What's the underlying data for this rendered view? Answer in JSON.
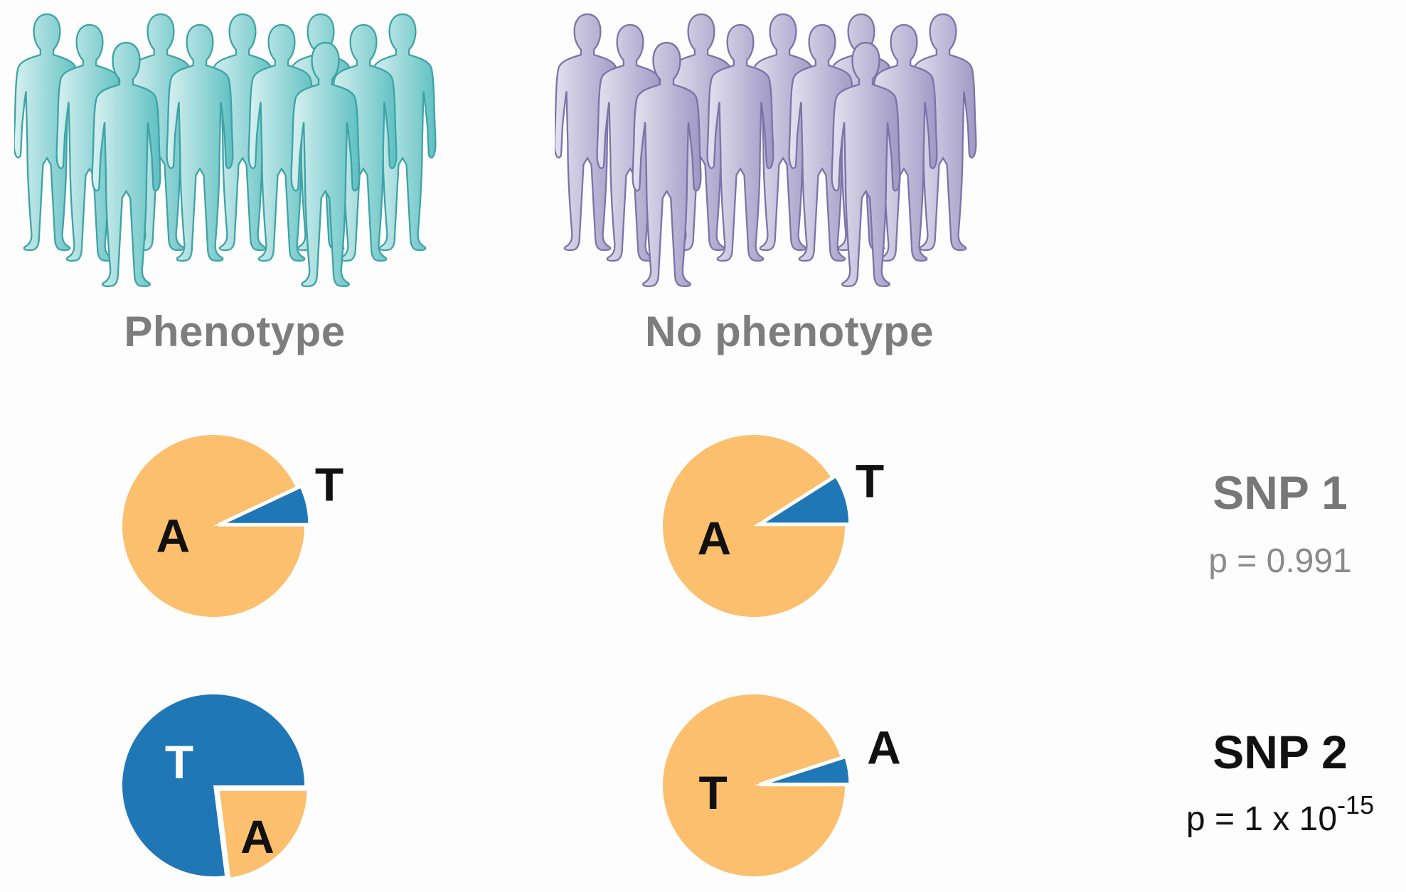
{
  "colors": {
    "phenotype_people": "#74c8c8",
    "phenotype_outline": "#3ea3a6",
    "nophenotype_people": "#b7b1d2",
    "nophenotype_outline": "#7d73a8",
    "allele_orange": "#fbbf6e",
    "allele_blue": "#1f77b6"
  },
  "groups": {
    "phenotype": {
      "label": "Phenotype",
      "icon": "people-crowd-icon"
    },
    "no_phenotype": {
      "label": "No phenotype",
      "icon": "people-crowd-icon"
    }
  },
  "snps": [
    {
      "title": "SNP 1",
      "p_prefix": "p = 0.991",
      "p_exponent": "",
      "title_color": "#777777",
      "p_color": "#8a8a8a",
      "phenotype": {
        "major": "A",
        "minor": "T",
        "major_fraction": 0.93,
        "minor_color": "blue"
      },
      "no_phenotype": {
        "major": "A",
        "minor": "T",
        "major_fraction": 0.91,
        "minor_color": "blue"
      }
    },
    {
      "title": "SNP 2",
      "p_prefix": "p = 1 x 10",
      "p_exponent": "-15",
      "title_color": "#111111",
      "p_color": "#111111",
      "phenotype": {
        "major": "T",
        "minor": "A",
        "major_fraction": 0.77,
        "major_color": "blue"
      },
      "no_phenotype": {
        "major": "T",
        "minor": "A",
        "major_fraction": 0.95,
        "minor_color": "blue"
      }
    }
  ]
}
